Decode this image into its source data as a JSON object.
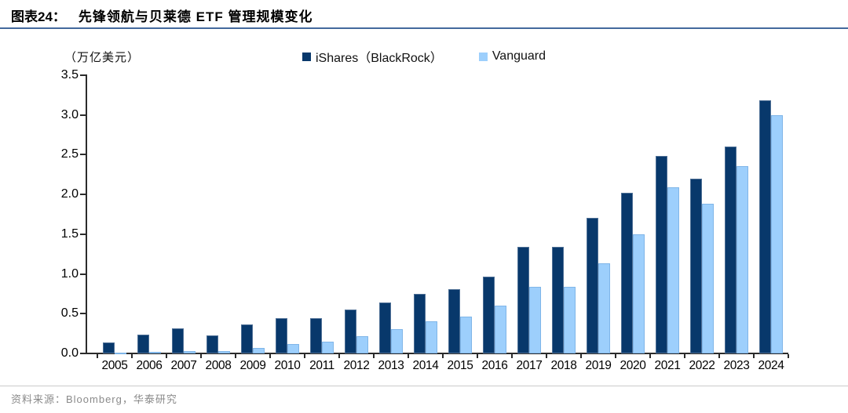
{
  "header": {
    "figure_label": "图表24：",
    "title": "先锋领航与贝莱德 ETF 管理规模变化"
  },
  "chart_data": {
    "type": "bar",
    "title": "先锋领航与贝莱德 ETF 管理规模变化",
    "unit_label": "（万亿美元）",
    "xlabel": "",
    "ylabel": "（万亿美元）",
    "categories": [
      "2005",
      "2006",
      "2007",
      "2008",
      "2009",
      "2010",
      "2011",
      "2012",
      "2013",
      "2014",
      "2015",
      "2016",
      "2017",
      "2018",
      "2019",
      "2020",
      "2021",
      "2022",
      "2023",
      "2024"
    ],
    "series": [
      {
        "key": "ishares",
        "name": "iShares（BlackRock）",
        "color": "#08386b",
        "values": [
          0.14,
          0.24,
          0.32,
          0.23,
          0.36,
          0.44,
          0.44,
          0.55,
          0.64,
          0.75,
          0.81,
          0.97,
          1.34,
          1.34,
          1.71,
          2.02,
          2.48,
          2.2,
          2.6,
          3.18
        ]
      },
      {
        "key": "vanguard",
        "name": "Vanguard",
        "color": "#9dcffc",
        "values": [
          0.01,
          0.02,
          0.03,
          0.03,
          0.07,
          0.12,
          0.15,
          0.22,
          0.31,
          0.4,
          0.46,
          0.6,
          0.84,
          0.84,
          1.13,
          1.5,
          2.09,
          1.88,
          2.36,
          3.0
        ]
      }
    ],
    "ylim": [
      0,
      3.5
    ],
    "ytick_step": 0.5,
    "ytick_labels": [
      "0.0",
      "0.5",
      "1.0",
      "1.5",
      "2.0",
      "2.5",
      "3.0",
      "3.5"
    ],
    "grid": false,
    "legend_position": "top-center"
  },
  "footer": {
    "source": "资料来源：Bloomberg，华泰研究"
  }
}
